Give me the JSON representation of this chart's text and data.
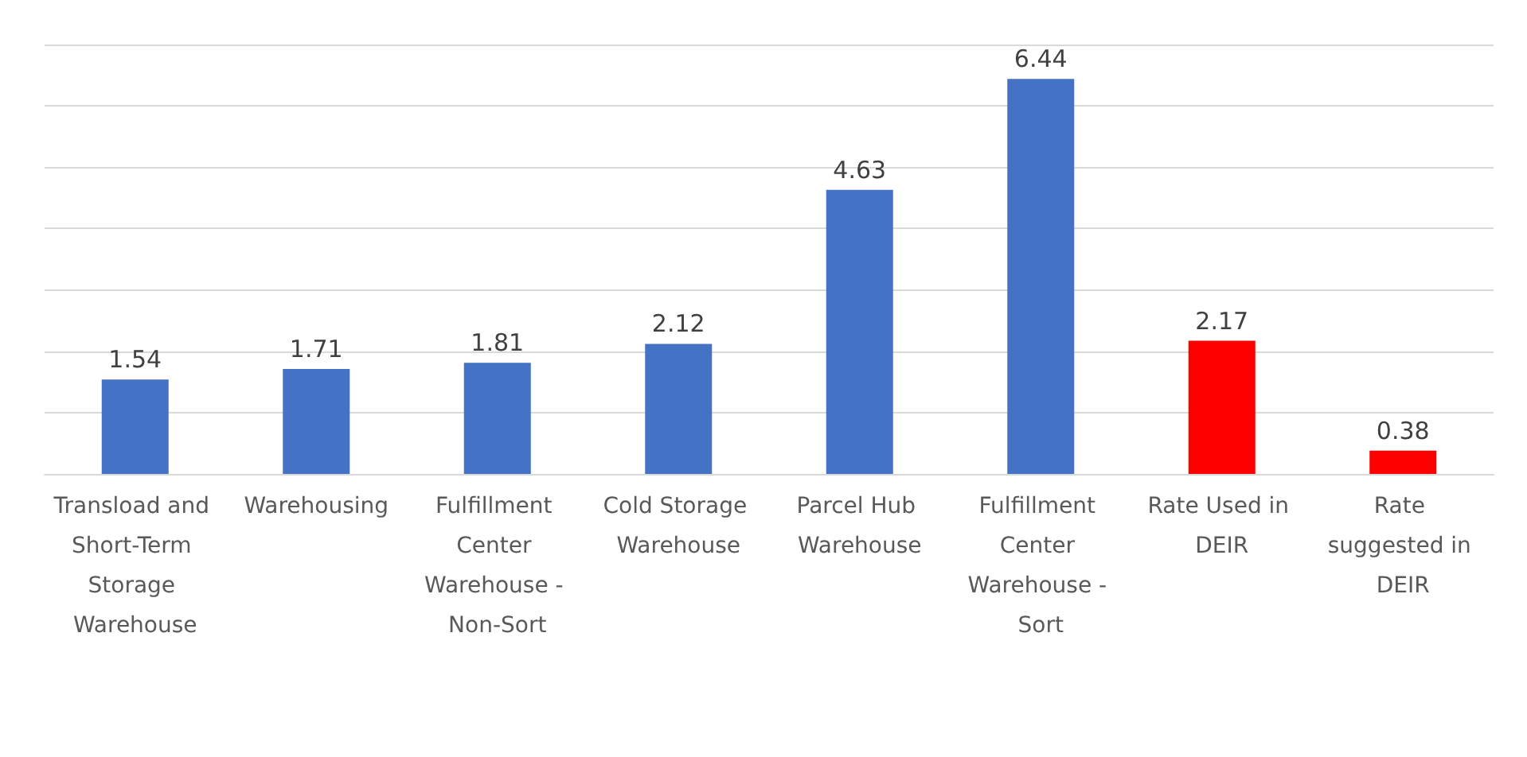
{
  "chart_data": {
    "type": "bar",
    "categories": [
      "Transload and Short-Term Storage Warehouse",
      "Warehousing",
      "Fulfillment Center Warehouse - Non-Sort",
      "Cold Storage Warehouse",
      "Parcel Hub Warehouse",
      "Fulfillment Center Warehouse - Sort",
      "Rate Used in DEIR",
      "Rate suggested in DEIR"
    ],
    "values": [
      1.54,
      1.71,
      1.81,
      2.12,
      4.63,
      6.44,
      2.17,
      0.38
    ],
    "colors": [
      "#4472c4",
      "#4472c4",
      "#4472c4",
      "#4472c4",
      "#4472c4",
      "#4472c4",
      "#ff0000",
      "#ff0000"
    ],
    "ylim": [
      0,
      7
    ],
    "yticks": [
      {
        "value": 0,
        "label": null
      },
      {
        "value": 1,
        "label": null
      },
      {
        "value": 2,
        "label": null
      },
      {
        "value": 3,
        "label": null
      },
      {
        "value": 4,
        "label": null
      },
      {
        "value": 5,
        "label": null
      },
      {
        "value": 6,
        "label": null
      },
      {
        "value": 7,
        "label": null
      }
    ],
    "tick_labels": "x",
    "grid": true,
    "data_labels": true
  }
}
